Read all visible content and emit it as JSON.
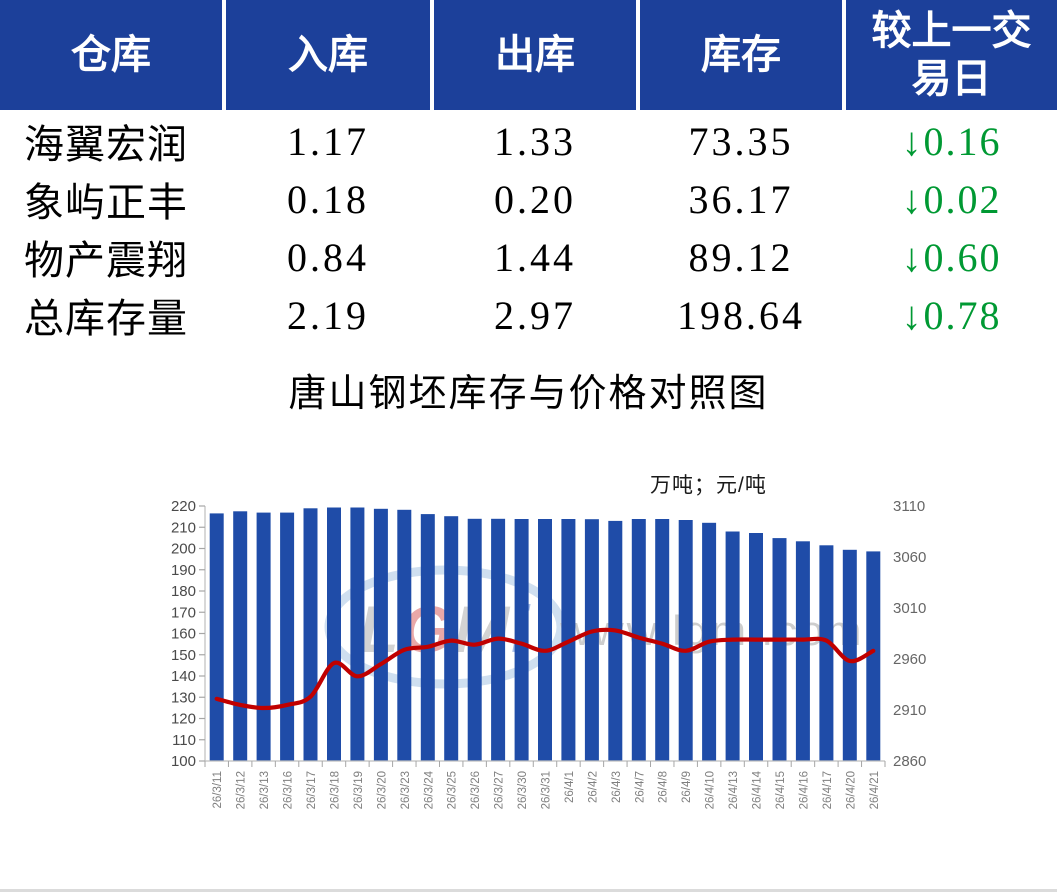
{
  "table": {
    "headers": [
      "仓库",
      "入库",
      "出库",
      "库存",
      "较上一交易日"
    ],
    "rows": [
      {
        "name": "海翼宏润",
        "inbound": "1.17",
        "outbound": "1.33",
        "stock": "73.35",
        "change": "0.16",
        "change_direction": "down",
        "change_arrow": "↓"
      },
      {
        "name": "象屿正丰",
        "inbound": "0.18",
        "outbound": "0.20",
        "stock": "36.17",
        "change": "0.02",
        "change_direction": "down",
        "change_arrow": "↓"
      },
      {
        "name": "物产震翔",
        "inbound": "0.84",
        "outbound": "1.44",
        "stock": "89.12",
        "change": "0.60",
        "change_direction": "down",
        "change_arrow": "↓"
      },
      {
        "name": "总库存量",
        "inbound": "2.19",
        "outbound": "2.97",
        "stock": "198.64",
        "change": "0.78",
        "change_direction": "down",
        "change_arrow": "↓"
      }
    ],
    "colors": {
      "header_bg": "#1C409A",
      "header_text": "#FFFFFF",
      "row_text": "#000000",
      "decrease_green": "#009933"
    }
  },
  "chart_data": {
    "type": "combo",
    "title": "唐山钢坯库存与价格对照图",
    "unit_label": "万吨；元/吨",
    "categories": [
      "26/3/11",
      "26/3/12",
      "26/3/13",
      "26/3/16",
      "26/3/17",
      "26/3/18",
      "26/3/19",
      "26/3/20",
      "26/3/23",
      "26/3/24",
      "26/3/25",
      "26/3/26",
      "26/3/27",
      "26/3/30",
      "26/3/31",
      "26/4/1",
      "26/4/2",
      "26/4/3",
      "26/4/7",
      "26/4/8",
      "26/4/9",
      "26/4/10",
      "26/4/13",
      "26/4/14",
      "26/4/15",
      "26/4/16",
      "26/4/17",
      "26/4/20",
      "26/4/21"
    ],
    "series": [
      {
        "name": "库存",
        "type": "bar",
        "axis": "left",
        "color": "#1F4CA8",
        "values": [
          216.5,
          217.5,
          216.9,
          216.9,
          218.9,
          219.3,
          219.3,
          218.7,
          218.2,
          216.2,
          215.2,
          214.0,
          214.0,
          213.9,
          213.9,
          213.9,
          213.8,
          213.0,
          213.9,
          213.9,
          213.4,
          212.1,
          208.0,
          207.3,
          204.9,
          203.4,
          201.5,
          199.4,
          198.64
        ]
      },
      {
        "name": "价格",
        "type": "line",
        "axis": "right",
        "color": "#C00000",
        "values": [
          2921,
          2915,
          2912,
          2915,
          2923,
          2956,
          2943,
          2955,
          2969,
          2972,
          2978,
          2974,
          2980,
          2975,
          2968,
          2977,
          2987,
          2988,
          2981,
          2975,
          2968,
          2977,
          2979,
          2979,
          2979,
          2979,
          2978,
          2958,
          2968
        ]
      }
    ],
    "left_axis": {
      "min": 100,
      "max": 220,
      "step": 10,
      "ticks": [
        100,
        110,
        120,
        130,
        140,
        150,
        160,
        170,
        180,
        190,
        200,
        210,
        220
      ]
    },
    "right_axis": {
      "min": 2860,
      "max": 3110,
      "step": 50,
      "ticks": [
        2860,
        2910,
        2960,
        3010,
        3060,
        3110
      ]
    },
    "grid": false,
    "legend": "none",
    "watermark": {
      "logo_text": "LGMi",
      "logo_letter_colors": [
        "#999999",
        "#CC3333",
        "#999999",
        "#3366CC"
      ],
      "url_text": "www.lgmi.com"
    }
  }
}
